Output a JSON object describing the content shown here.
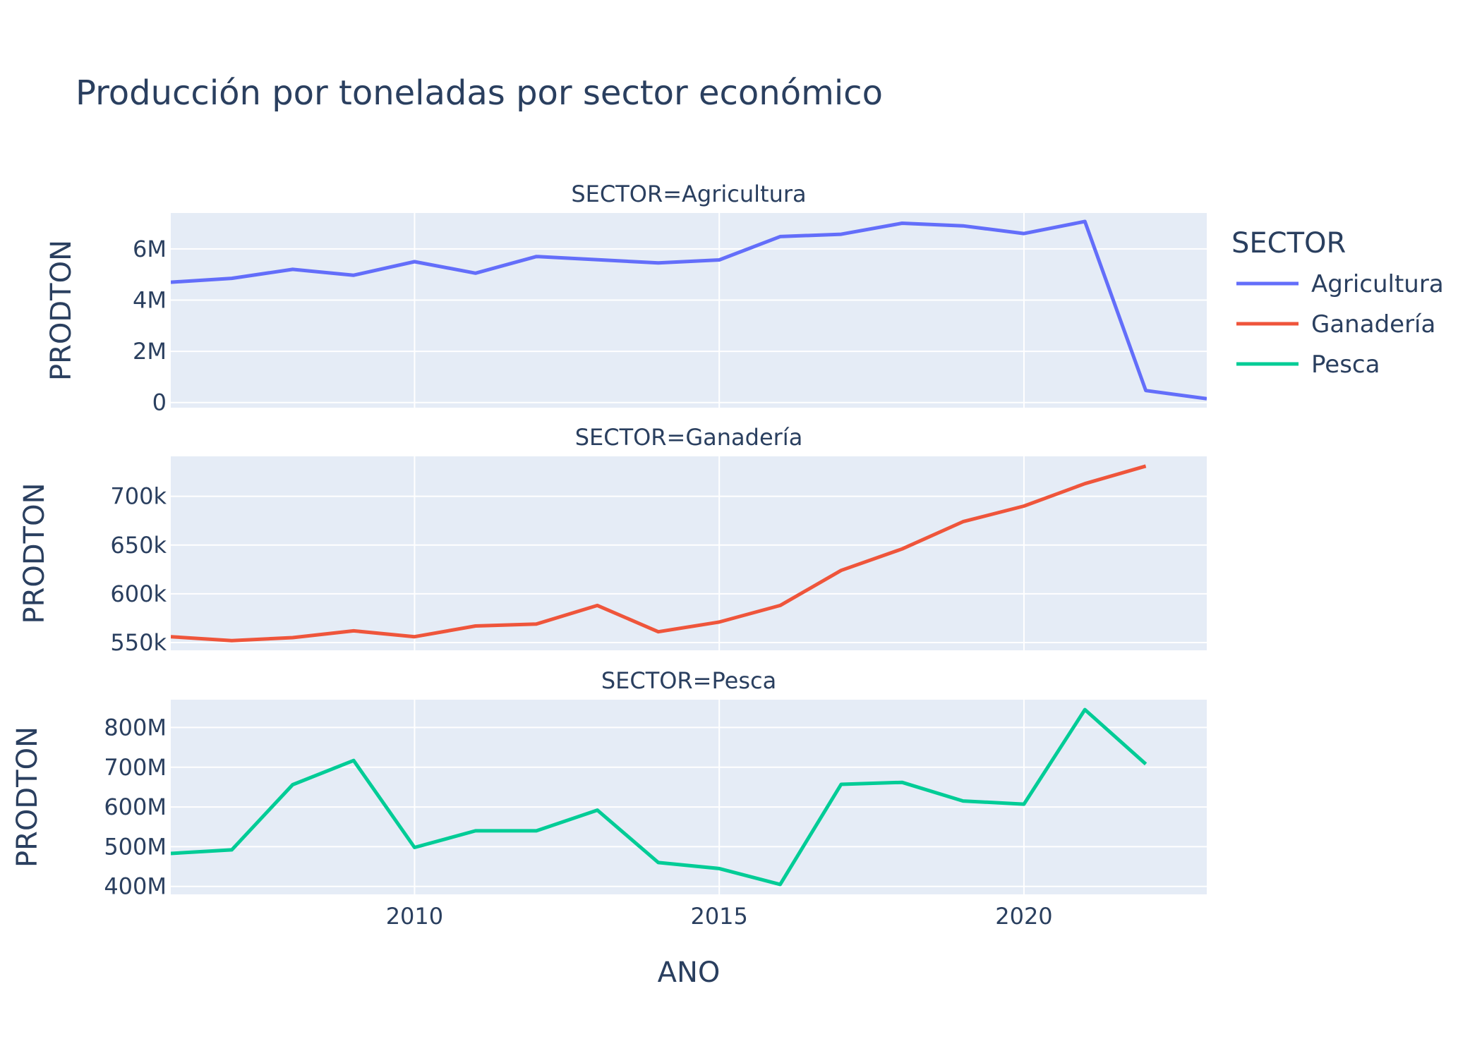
{
  "chart_data": {
    "type": "line",
    "title": "Producción por toneladas por sector económico",
    "xlabel": "ANO",
    "xlim": [
      2006,
      2023
    ],
    "x_ticks": [
      2010,
      2015,
      2020
    ],
    "legend": {
      "title": "SECTOR",
      "placement": "right"
    },
    "grid": true,
    "colors": {
      "plot_bg": "#E5ECF6",
      "grid": "#FFFFFF",
      "text": "#2a3f5f"
    },
    "panels": [
      {
        "facet_label": "SECTOR=Agricultura",
        "series_name": "Agricultura",
        "color": "#636EFA",
        "ylabel": "PRODTON",
        "ylim": [
          -200000,
          7400000
        ],
        "y_ticks": [
          {
            "value": 0,
            "label": "0"
          },
          {
            "value": 2000000,
            "label": "2M"
          },
          {
            "value": 4000000,
            "label": "4M"
          },
          {
            "value": 6000000,
            "label": "6M"
          }
        ],
        "x": [
          2006,
          2007,
          2008,
          2009,
          2010,
          2011,
          2012,
          2014,
          2015,
          2016,
          2017,
          2018,
          2019,
          2020,
          2021,
          2022,
          2023
        ],
        "values": [
          4700000,
          4850000,
          5200000,
          4970000,
          5500000,
          5050000,
          5700000,
          5450000,
          5570000,
          6480000,
          6570000,
          7000000,
          6900000,
          6600000,
          7070000,
          470000,
          150000
        ]
      },
      {
        "facet_label": "SECTOR=Ganadería",
        "series_name": "Ganadería",
        "color": "#EF553B",
        "ylabel": "PRODTON",
        "ylim": [
          542000,
          741000
        ],
        "y_ticks": [
          {
            "value": 550000,
            "label": "550k"
          },
          {
            "value": 600000,
            "label": "600k"
          },
          {
            "value": 650000,
            "label": "650k"
          },
          {
            "value": 700000,
            "label": "700k"
          }
        ],
        "x": [
          2006,
          2007,
          2008,
          2009,
          2010,
          2011,
          2012,
          2013,
          2014,
          2015,
          2016,
          2017,
          2018,
          2019,
          2020,
          2021,
          2022
        ],
        "values": [
          556000,
          552000,
          555000,
          562000,
          556000,
          567000,
          569000,
          588000,
          561000,
          571000,
          588000,
          624000,
          646000,
          674000,
          690000,
          713000,
          731000
        ]
      },
      {
        "facet_label": "SECTOR=Pesca",
        "series_name": "Pesca",
        "color": "#00CC96",
        "ylabel": "PRODTON",
        "ylim": [
          380000000,
          870000000
        ],
        "y_ticks": [
          {
            "value": 400000000,
            "label": "400M"
          },
          {
            "value": 500000000,
            "label": "500M"
          },
          {
            "value": 600000000,
            "label": "600M"
          },
          {
            "value": 700000000,
            "label": "700M"
          },
          {
            "value": 800000000,
            "label": "800M"
          }
        ],
        "x": [
          2006,
          2007,
          2008,
          2009,
          2010,
          2011,
          2012,
          2013,
          2014,
          2015,
          2016,
          2017,
          2018,
          2019,
          2020,
          2021,
          2022
        ],
        "values": [
          483000000,
          492000000,
          656000000,
          717000000,
          498000000,
          540000000,
          540000000,
          592000000,
          460000000,
          445000000,
          405000000,
          657000000,
          662000000,
          615000000,
          607000000,
          845000000,
          708000000
        ]
      }
    ]
  }
}
